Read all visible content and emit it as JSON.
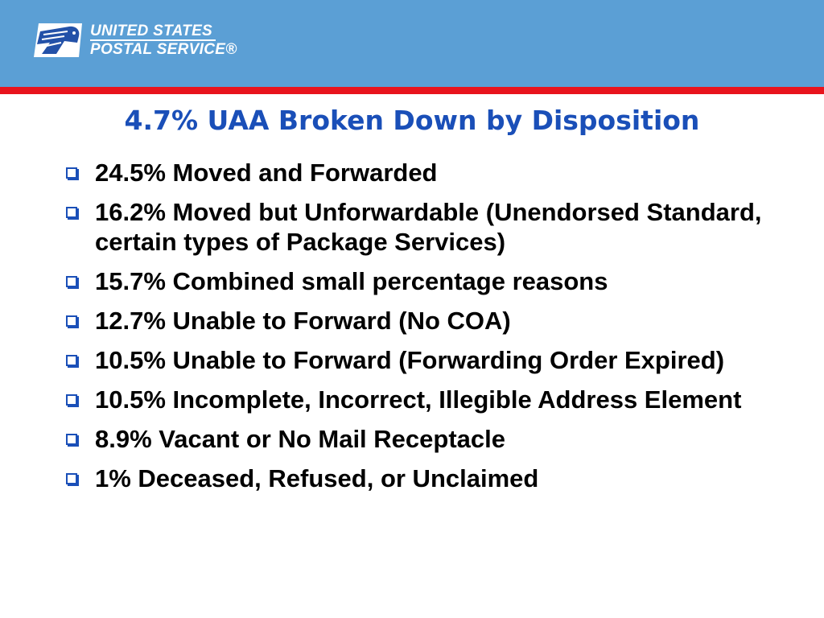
{
  "colors": {
    "header_band": "#5b9fd5",
    "header_rule": "#e8141d",
    "title": "#1a4fb8",
    "bullet_marker": "#1a4fb8"
  },
  "logo": {
    "icon": "eagle-logo-icon",
    "line1": "UNITED STATES",
    "line2": "POSTAL SERVICE®"
  },
  "slide": {
    "title": "4.7% UAA Broken Down by Disposition",
    "bullets": [
      "24.5% Moved and Forwarded",
      "16.2% Moved but Unforwardable (Unendorsed Standard, certain types of Package Services)",
      "15.7% Combined small percentage reasons",
      "12.7% Unable to Forward (No COA)",
      "10.5% Unable to Forward (Forwarding Order Expired)",
      "10.5% Incomplete, Incorrect, Illegible Address Element",
      "8.9% Vacant or No Mail Receptacle",
      "1% Deceased, Refused, or Unclaimed"
    ]
  }
}
